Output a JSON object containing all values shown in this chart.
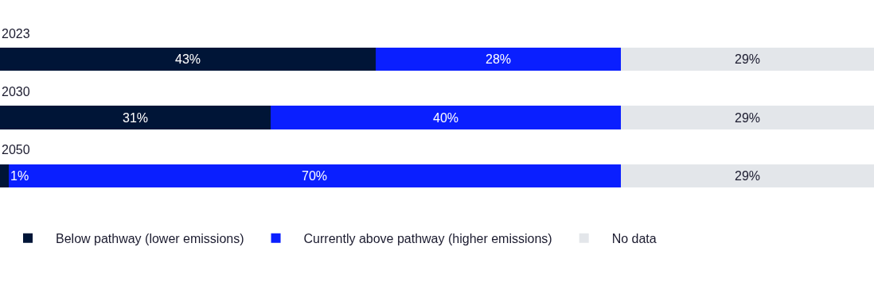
{
  "chart_data": {
    "type": "bar",
    "orientation": "horizontal",
    "stacked": true,
    "legend": "bottom",
    "categories": [
      "2023",
      "2030",
      "2050"
    ],
    "series": [
      {
        "name": "Below pathway (lower emissions)",
        "color": "#001537",
        "values": [
          43,
          31,
          1
        ],
        "value_labels": [
          "43%",
          "31%",
          "1%"
        ]
      },
      {
        "name": "Currently above pathway (higher emissions)",
        "color": "#0a1fff",
        "values": [
          28,
          40,
          70
        ],
        "value_labels": [
          "28%",
          "40%",
          "70%"
        ]
      },
      {
        "name": "No data",
        "color": "#e3e6ea",
        "values": [
          29,
          29,
          29
        ],
        "value_labels": [
          "29%",
          "29%",
          "29%"
        ]
      }
    ]
  }
}
